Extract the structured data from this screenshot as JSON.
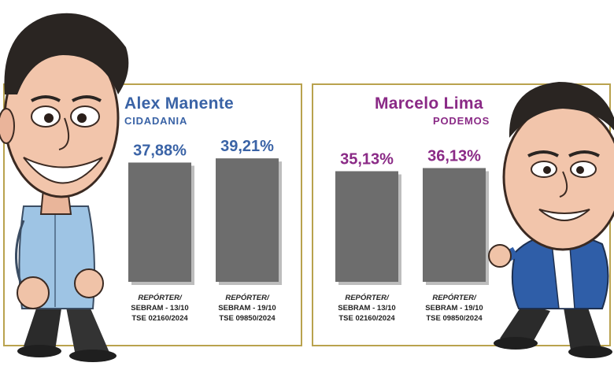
{
  "colors": {
    "frame": "#b9a24e",
    "bar": "#6d6d6d",
    "bar_shadow": "#bdbdbd",
    "alex": "#3a63a6",
    "marcelo": "#8a2a86",
    "caption": "#222222"
  },
  "chart_data": [
    {
      "type": "bar",
      "title": "Alex Manente",
      "subtitle": "CIDADANIA",
      "categories": [
        [
          "REPÓRTER/",
          "SEBRAM - 13/10",
          "TSE 02160/2024"
        ],
        [
          "REPÓRTER/",
          "SEBRAM - 19/10",
          "TSE 09850/2024"
        ]
      ],
      "values": [
        37.88,
        39.21
      ],
      "value_labels": [
        "37,88%",
        "39,21%"
      ],
      "ylim": [
        0,
        45
      ],
      "grid": false
    },
    {
      "type": "bar",
      "title": "Marcelo Lima",
      "subtitle": "PODEMOS",
      "categories": [
        [
          "REPÓRTER/",
          "SEBRAM - 13/10",
          "TSE 02160/2024"
        ],
        [
          "REPÓRTER/",
          "SEBRAM - 19/10",
          "TSE 09850/2024"
        ]
      ],
      "values": [
        35.13,
        36.13
      ],
      "value_labels": [
        "35,13%",
        "36,13%"
      ],
      "ylim": [
        0,
        45
      ],
      "grid": false
    }
  ],
  "illustrations": [
    "alex-manente-caricature",
    "marcelo-lima-caricature"
  ]
}
